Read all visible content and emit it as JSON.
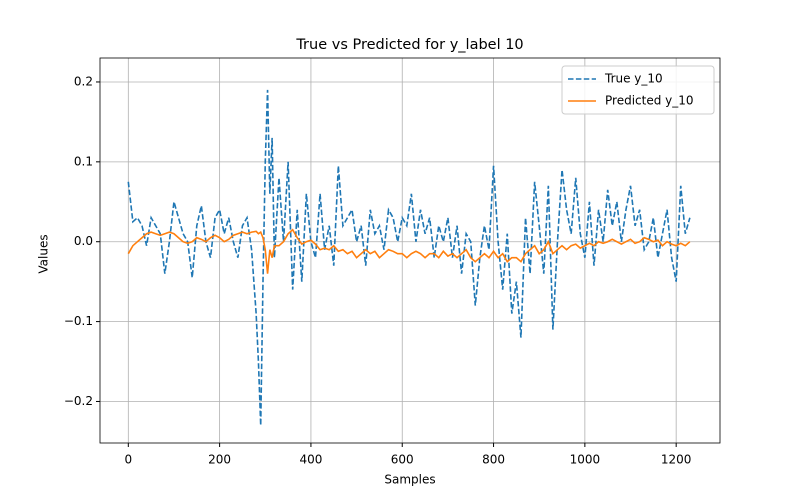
{
  "chart_data": {
    "type": "line",
    "title": "True vs Predicted for y_label 10",
    "x_label": "Samples",
    "y_label": "Values",
    "grid": true,
    "legend_position": "upper right",
    "xlim": [
      -62,
      1296
    ],
    "ylim": [
      -0.252,
      0.23
    ],
    "xticks": [
      0,
      200,
      400,
      600,
      800,
      1000,
      1200
    ],
    "yticks": [
      {
        "value": -0.2,
        "label": "−0.2"
      },
      {
        "value": -0.1,
        "label": "−0.1"
      },
      {
        "value": 0,
        "label": "0.0"
      },
      0.1,
      0.2
    ],
    "x": [
      0,
      10,
      20,
      30,
      40,
      50,
      60,
      70,
      80,
      90,
      100,
      110,
      120,
      130,
      140,
      150,
      160,
      170,
      180,
      190,
      200,
      210,
      220,
      230,
      240,
      250,
      260,
      270,
      280,
      285,
      290,
      295,
      300,
      305,
      310,
      315,
      320,
      330,
      340,
      350,
      360,
      370,
      380,
      390,
      400,
      410,
      420,
      430,
      440,
      450,
      460,
      470,
      480,
      490,
      500,
      510,
      520,
      530,
      540,
      550,
      560,
      570,
      580,
      590,
      600,
      610,
      620,
      630,
      640,
      650,
      660,
      670,
      680,
      690,
      700,
      710,
      720,
      730,
      740,
      750,
      760,
      770,
      780,
      790,
      800,
      810,
      820,
      830,
      840,
      850,
      860,
      870,
      880,
      890,
      900,
      910,
      920,
      930,
      940,
      950,
      960,
      970,
      980,
      990,
      1000,
      1010,
      1020,
      1030,
      1040,
      1050,
      1060,
      1070,
      1080,
      1090,
      1100,
      1110,
      1120,
      1130,
      1140,
      1150,
      1160,
      1170,
      1180,
      1190,
      1200,
      1210,
      1220,
      1230
    ],
    "series": [
      {
        "name": "True y_10",
        "color": "#1f77b4",
        "linestyle": "dashed",
        "values": [
          0.075,
          0.025,
          0.03,
          0.02,
          -0.005,
          0.03,
          0.02,
          0.01,
          -0.04,
          0.0,
          0.05,
          0.03,
          0.01,
          0.0,
          -0.045,
          0.02,
          0.045,
          0.0,
          -0.02,
          0.03,
          0.04,
          0.01,
          0.03,
          0.0,
          -0.02,
          0.02,
          0.03,
          -0.01,
          -0.09,
          -0.15,
          -0.23,
          -0.05,
          0.1,
          0.19,
          0.06,
          0.13,
          -0.02,
          0.08,
          0.0,
          0.1,
          -0.06,
          0.04,
          -0.05,
          0.06,
          0.0,
          -0.02,
          0.06,
          -0.01,
          0.02,
          -0.03,
          0.095,
          0.02,
          0.03,
          0.04,
          0.0,
          0.02,
          -0.03,
          0.04,
          0.01,
          0.02,
          -0.01,
          0.04,
          0.03,
          0.0,
          0.03,
          0.02,
          0.06,
          0.0,
          0.04,
          0.01,
          0.03,
          -0.02,
          0.02,
          0.0,
          0.03,
          -0.02,
          0.02,
          -0.04,
          0.01,
          0.0,
          -0.08,
          -0.02,
          0.02,
          -0.01,
          0.095,
          0.0,
          -0.06,
          0.01,
          -0.09,
          -0.05,
          -0.12,
          0.03,
          -0.04,
          0.075,
          0.02,
          -0.04,
          0.07,
          -0.11,
          0.0,
          0.09,
          0.04,
          0.01,
          0.08,
          0.01,
          -0.02,
          0.05,
          -0.03,
          0.04,
          0.0,
          0.065,
          0.02,
          0.05,
          0.0,
          0.04,
          0.07,
          0.02,
          0.04,
          -0.01,
          0.0,
          0.03,
          -0.02,
          0.01,
          0.04,
          -0.02,
          -0.05,
          0.07,
          0.01,
          0.03
        ]
      },
      {
        "name": "Predicted y_10",
        "color": "#ff7f0e",
        "linestyle": "solid",
        "values": [
          -0.015,
          -0.005,
          0.0,
          0.005,
          0.01,
          0.012,
          0.01,
          0.008,
          0.01,
          0.012,
          0.01,
          0.005,
          0.0,
          -0.002,
          0.0,
          0.005,
          0.003,
          0.0,
          0.005,
          0.008,
          0.005,
          0.0,
          0.003,
          0.008,
          0.01,
          0.012,
          0.01,
          0.012,
          0.013,
          0.01,
          0.012,
          0.005,
          -0.01,
          -0.04,
          -0.01,
          -0.02,
          -0.005,
          -0.005,
          0.0,
          0.01,
          0.015,
          0.005,
          -0.003,
          0.0,
          0.002,
          -0.003,
          -0.01,
          -0.008,
          -0.01,
          -0.005,
          -0.012,
          -0.01,
          -0.015,
          -0.012,
          -0.02,
          -0.015,
          -0.01,
          -0.015,
          -0.012,
          -0.02,
          -0.015,
          -0.01,
          -0.012,
          -0.015,
          -0.015,
          -0.02,
          -0.015,
          -0.012,
          -0.015,
          -0.02,
          -0.015,
          -0.015,
          -0.02,
          -0.012,
          -0.018,
          -0.015,
          -0.02,
          -0.015,
          -0.01,
          -0.02,
          -0.025,
          -0.02,
          -0.015,
          -0.02,
          -0.012,
          -0.02,
          -0.015,
          -0.025,
          -0.02,
          -0.02,
          -0.025,
          -0.015,
          -0.01,
          -0.005,
          -0.015,
          -0.01,
          0.0,
          -0.015,
          -0.01,
          -0.005,
          -0.01,
          -0.005,
          -0.003,
          -0.008,
          -0.005,
          -0.002,
          -0.005,
          0.0,
          -0.002,
          0.0,
          0.003,
          0.0,
          -0.003,
          0.0,
          0.003,
          -0.002,
          0.0,
          0.005,
          0.003,
          0.0,
          0.002,
          -0.005,
          0.0,
          -0.003,
          -0.005,
          -0.002,
          -0.005,
          0.0
        ]
      }
    ]
  }
}
